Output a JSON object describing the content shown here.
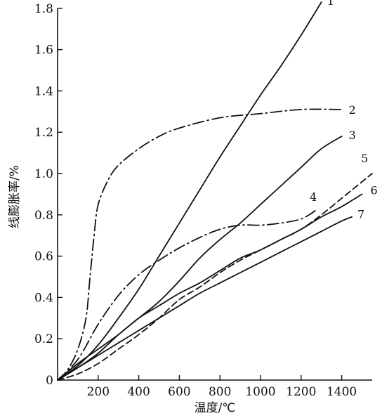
{
  "chart_data": {
    "type": "line",
    "xlabel": "温度/℃",
    "ylabel": "线膨胀率/%",
    "xlim": [
      0,
      1550
    ],
    "ylim": [
      0,
      1.85
    ],
    "x_ticks": [
      200,
      400,
      600,
      800,
      1000,
      1200,
      1400
    ],
    "x_tick_labels": [
      "200",
      "400",
      "600",
      "800",
      "1000",
      "1200",
      "1400"
    ],
    "y_ticks": [
      0,
      0.2,
      0.4,
      0.6,
      0.8,
      1.0,
      1.2,
      1.4,
      1.6,
      1.8
    ],
    "y_tick_labels": [
      "0",
      "0.2",
      "0.4",
      "0.6",
      "0.8",
      "1.0",
      "1.2",
      "1.4",
      "1.6",
      "1.8"
    ],
    "grid": false,
    "legend": "none",
    "series": [
      {
        "name": "1",
        "style": "solid",
        "points": [
          [
            0,
            0
          ],
          [
            100,
            0.07
          ],
          [
            200,
            0.17
          ],
          [
            300,
            0.3
          ],
          [
            400,
            0.44
          ],
          [
            500,
            0.6
          ],
          [
            600,
            0.76
          ],
          [
            700,
            0.92
          ],
          [
            800,
            1.08
          ],
          [
            900,
            1.23
          ],
          [
            1000,
            1.38
          ],
          [
            1100,
            1.52
          ],
          [
            1200,
            1.67
          ],
          [
            1300,
            1.83
          ]
        ]
      },
      {
        "name": "2",
        "style": "dashdot",
        "points": [
          [
            0,
            0
          ],
          [
            50,
            0.05
          ],
          [
            100,
            0.15
          ],
          [
            140,
            0.3
          ],
          [
            160,
            0.5
          ],
          [
            180,
            0.7
          ],
          [
            200,
            0.85
          ],
          [
            250,
            0.97
          ],
          [
            300,
            1.04
          ],
          [
            400,
            1.12
          ],
          [
            500,
            1.18
          ],
          [
            600,
            1.22
          ],
          [
            800,
            1.27
          ],
          [
            1000,
            1.29
          ],
          [
            1200,
            1.31
          ],
          [
            1400,
            1.31
          ]
        ]
      },
      {
        "name": "3",
        "style": "solid",
        "points": [
          [
            0,
            0
          ],
          [
            100,
            0.06
          ],
          [
            200,
            0.13
          ],
          [
            300,
            0.22
          ],
          [
            400,
            0.3
          ],
          [
            500,
            0.38
          ],
          [
            600,
            0.48
          ],
          [
            700,
            0.59
          ],
          [
            800,
            0.68
          ],
          [
            900,
            0.76
          ],
          [
            1000,
            0.85
          ],
          [
            1100,
            0.94
          ],
          [
            1200,
            1.03
          ],
          [
            1300,
            1.12
          ],
          [
            1400,
            1.18
          ]
        ]
      },
      {
        "name": "4",
        "style": "dashdot",
        "points": [
          [
            0,
            0
          ],
          [
            100,
            0.1
          ],
          [
            200,
            0.27
          ],
          [
            300,
            0.41
          ],
          [
            400,
            0.51
          ],
          [
            500,
            0.58
          ],
          [
            600,
            0.64
          ],
          [
            700,
            0.69
          ],
          [
            800,
            0.73
          ],
          [
            900,
            0.75
          ],
          [
            1000,
            0.75
          ],
          [
            1100,
            0.76
          ],
          [
            1200,
            0.78
          ],
          [
            1270,
            0.82
          ]
        ]
      },
      {
        "name": "5",
        "style": "dashed",
        "points": [
          [
            0,
            0
          ],
          [
            100,
            0.03
          ],
          [
            200,
            0.08
          ],
          [
            300,
            0.15
          ],
          [
            400,
            0.22
          ],
          [
            500,
            0.3
          ],
          [
            600,
            0.39
          ],
          [
            700,
            0.45
          ],
          [
            800,
            0.52
          ],
          [
            900,
            0.58
          ],
          [
            1000,
            0.63
          ],
          [
            1100,
            0.68
          ],
          [
            1200,
            0.73
          ],
          [
            1300,
            0.8
          ],
          [
            1400,
            0.88
          ],
          [
            1500,
            0.96
          ],
          [
            1550,
            1.0
          ]
        ]
      },
      {
        "name": "6",
        "style": "solid",
        "points": [
          [
            0,
            0
          ],
          [
            100,
            0.08
          ],
          [
            200,
            0.15
          ],
          [
            300,
            0.22
          ],
          [
            400,
            0.3
          ],
          [
            500,
            0.36
          ],
          [
            600,
            0.42
          ],
          [
            700,
            0.47
          ],
          [
            800,
            0.53
          ],
          [
            900,
            0.59
          ],
          [
            1000,
            0.63
          ],
          [
            1100,
            0.68
          ],
          [
            1200,
            0.73
          ],
          [
            1300,
            0.79
          ],
          [
            1400,
            0.84
          ],
          [
            1500,
            0.9
          ]
        ]
      },
      {
        "name": "7",
        "style": "solid",
        "points": [
          [
            0,
            0
          ],
          [
            100,
            0.06
          ],
          [
            200,
            0.12
          ],
          [
            300,
            0.18
          ],
          [
            400,
            0.24
          ],
          [
            500,
            0.3
          ],
          [
            600,
            0.36
          ],
          [
            700,
            0.42
          ],
          [
            800,
            0.47
          ],
          [
            900,
            0.52
          ],
          [
            1000,
            0.57
          ],
          [
            1100,
            0.62
          ],
          [
            1200,
            0.67
          ],
          [
            1300,
            0.72
          ],
          [
            1400,
            0.77
          ],
          [
            1450,
            0.79
          ]
        ]
      }
    ]
  }
}
